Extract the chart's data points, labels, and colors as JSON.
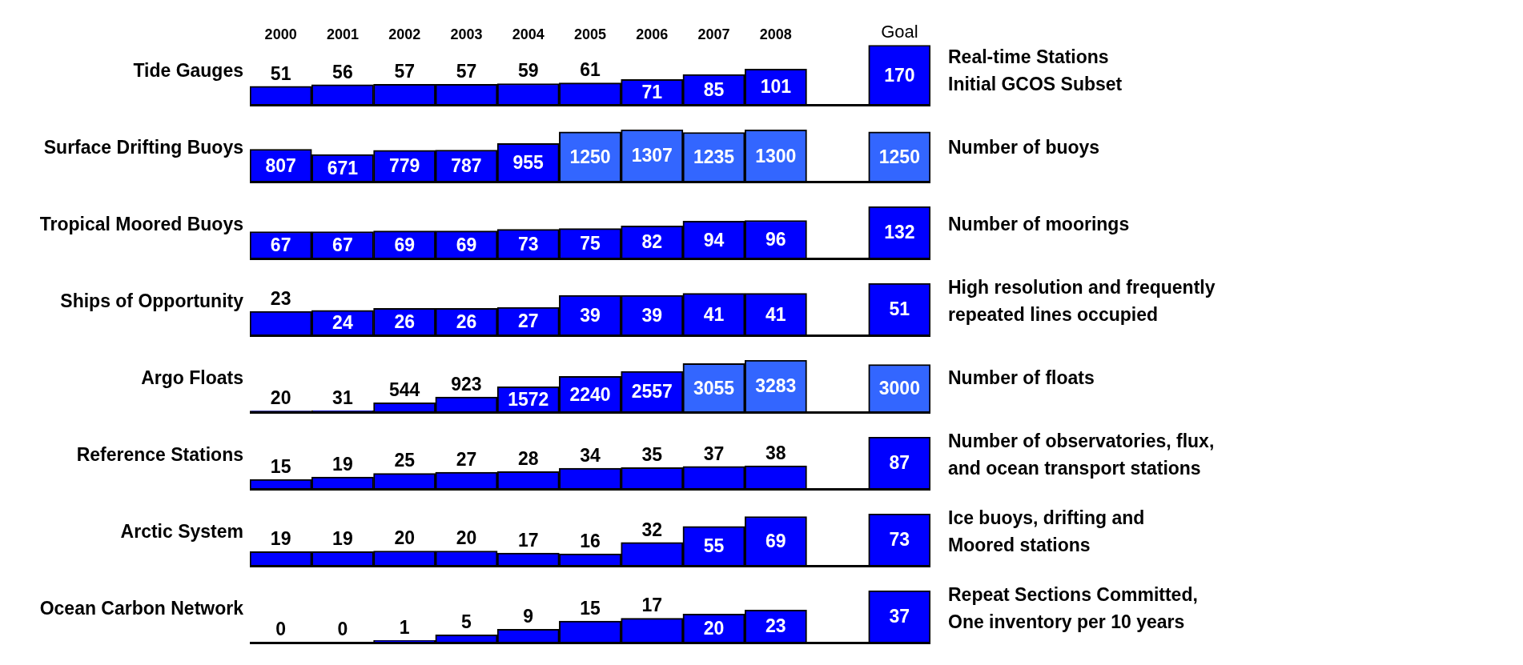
{
  "chart_data": [
    {
      "type": "bar",
      "ylabel": "Tide Gauges",
      "categories": [
        "2000",
        "2001",
        "2002",
        "2003",
        "2004",
        "2005",
        "2006",
        "2007",
        "2008",
        null,
        "Goal"
      ],
      "values": [
        51,
        56,
        57,
        57,
        59,
        61,
        71,
        85,
        101,
        null,
        170
      ],
      "colors": [
        "#0000ff",
        "#0000ff",
        "#0000ff",
        "#0000ff",
        "#0000ff",
        "#0000ff",
        "#0000ff",
        "#0000ff",
        "#0000ff",
        "#0000ff",
        "#0000ff"
      ],
      "data_labels": true,
      "tick_labels": "x",
      "annotations": [
        "Real-time Stations\nInitial GCOS Subset"
      ]
    },
    {
      "type": "bar",
      "ylabel": "Surface Drifting Buoys",
      "categories": [
        null,
        null,
        null,
        null,
        null,
        null,
        null,
        null,
        null,
        null,
        null
      ],
      "values": [
        807,
        671,
        779,
        787,
        955,
        1250,
        1307,
        1235,
        1300,
        null,
        1250
      ],
      "colors": [
        "#0000ff",
        "#0000ff",
        "#0000ff",
        "#0000ff",
        "#0000ff",
        "#3366ff",
        "#3366ff",
        "#3366ff",
        "#3366ff",
        "#3366ff",
        "#3366ff"
      ],
      "data_labels": true,
      "tick_labels": false,
      "annotations": [
        "Number of buoys"
      ]
    },
    {
      "type": "bar",
      "ylabel": "Tropical Moored Buoys",
      "categories": [
        null,
        null,
        null,
        null,
        null,
        null,
        null,
        null,
        null,
        null,
        null
      ],
      "values": [
        67,
        67,
        69,
        69,
        73,
        75,
        82,
        94,
        96,
        null,
        132
      ],
      "colors": [
        "#0000ff",
        "#0000ff",
        "#0000ff",
        "#0000ff",
        "#0000ff",
        "#0000ff",
        "#0000ff",
        "#0000ff",
        "#0000ff",
        "#0000ff",
        "#0000ff"
      ],
      "data_labels": true,
      "tick_labels": false,
      "annotations": [
        "Number of moorings"
      ]
    },
    {
      "type": "bar",
      "ylabel": "Ships of Opportunity",
      "categories": [
        null,
        null,
        null,
        null,
        null,
        null,
        null,
        null,
        null,
        null,
        null
      ],
      "values": [
        23,
        24,
        26,
        26,
        27,
        39,
        39,
        41,
        41,
        null,
        51
      ],
      "colors": [
        "#0000ff",
        "#0000ff",
        "#0000ff",
        "#0000ff",
        "#0000ff",
        "#0000ff",
        "#0000ff",
        "#0000ff",
        "#0000ff",
        "#0000ff",
        "#0000ff"
      ],
      "data_labels": true,
      "tick_labels": false,
      "annotations": [
        "High resolution and frequently\nrepeated lines occupied"
      ]
    },
    {
      "type": "bar",
      "ylabel": "Argo Floats",
      "categories": [
        null,
        null,
        null,
        null,
        null,
        null,
        null,
        null,
        null,
        null,
        null
      ],
      "values": [
        20,
        31,
        544,
        923,
        1572,
        2240,
        2557,
        3055,
        3283,
        null,
        3000
      ],
      "colors": [
        "#0000ff",
        "#0000ff",
        "#0000ff",
        "#0000ff",
        "#0000ff",
        "#0000ff",
        "#0000ff",
        "#3366ff",
        "#3366ff",
        "#3366ff",
        "#3366ff"
      ],
      "data_labels": true,
      "tick_labels": false,
      "annotations": [
        "Number of floats"
      ]
    },
    {
      "type": "bar",
      "ylabel": "Reference Stations",
      "categories": [
        null,
        null,
        null,
        null,
        null,
        null,
        null,
        null,
        null,
        null,
        null
      ],
      "values": [
        15,
        19,
        25,
        27,
        28,
        34,
        35,
        37,
        38,
        null,
        87
      ],
      "colors": [
        "#0000ff",
        "#0000ff",
        "#0000ff",
        "#0000ff",
        "#0000ff",
        "#0000ff",
        "#0000ff",
        "#0000ff",
        "#0000ff",
        "#0000ff",
        "#0000ff"
      ],
      "data_labels": true,
      "tick_labels": false,
      "annotations": [
        "Number of observatories, flux,\nand ocean transport stations"
      ]
    },
    {
      "type": "bar",
      "ylabel": "Arctic System",
      "categories": [
        null,
        null,
        null,
        null,
        null,
        null,
        null,
        null,
        null,
        null,
        null
      ],
      "values": [
        19,
        19,
        20,
        20,
        17,
        16,
        32,
        55,
        69,
        null,
        73
      ],
      "colors": [
        "#0000ff",
        "#0000ff",
        "#0000ff",
        "#0000ff",
        "#0000ff",
        "#0000ff",
        "#0000ff",
        "#0000ff",
        "#0000ff",
        "#0000ff",
        "#0000ff"
      ],
      "data_labels": true,
      "tick_labels": false,
      "annotations": [
        "Ice buoys, drifting and\nMoored stations"
      ]
    },
    {
      "type": "bar",
      "ylabel": "Ocean Carbon Network",
      "categories": [
        null,
        null,
        null,
        null,
        null,
        null,
        null,
        null,
        null,
        null,
        null
      ],
      "values": [
        0,
        0,
        1,
        5,
        9,
        15,
        17,
        20,
        23,
        null,
        37
      ],
      "colors": [
        "#0000ff",
        "#0000ff",
        "#0000ff",
        "#0000ff",
        "#0000ff",
        "#0000ff",
        "#0000ff",
        "#0000ff",
        "#0000ff",
        "#0000ff",
        "#0000ff"
      ],
      "data_labels": true,
      "tick_labels": false,
      "annotations": [
        "Repeat Sections Committed,\nOne inventory per 10 years"
      ]
    }
  ]
}
